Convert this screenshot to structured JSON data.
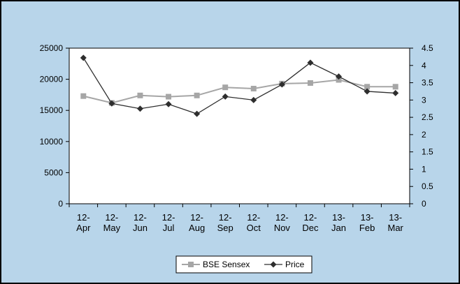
{
  "colors": {
    "chart_background": "#b8d5ea",
    "plot_background": "#ffffff",
    "border": "#000000",
    "sensex_series": "#a6a6a6",
    "price_series": "#2e2e2e"
  },
  "chart_data": {
    "type": "line",
    "categories": [
      "12-\nApr",
      "12-\nMay",
      "12-\nJun",
      "12-\nJul",
      "12-\nAug",
      "12-\nSep",
      "12-\nOct",
      "12-\nNov",
      "12-\nDec",
      "13-\nJan",
      "13-\nFeb",
      "13-\nMar"
    ],
    "y_left": {
      "range": [
        0,
        25000
      ],
      "ticks": [
        0,
        5000,
        10000,
        15000,
        20000,
        25000
      ],
      "tick_labels": [
        "0",
        "5000",
        "10000",
        "15000",
        "20000",
        "25000"
      ]
    },
    "y_right": {
      "range": [
        0,
        4.5
      ],
      "ticks": [
        0,
        0.5,
        1,
        1.5,
        2,
        2.5,
        3,
        3.5,
        4,
        4.5
      ],
      "tick_labels": [
        "0",
        "0.5",
        "1",
        "1.5",
        "2",
        "2.5",
        "3",
        "3.5",
        "4",
        "4.5"
      ]
    },
    "series": [
      {
        "name": "BSE Sensex",
        "axis": "left",
        "marker": "square",
        "values": [
          17300,
          16200,
          17400,
          17200,
          17400,
          18700,
          18500,
          19300,
          19400,
          19900,
          18800,
          18800
        ]
      },
      {
        "name": "Price",
        "axis": "right",
        "marker": "diamond",
        "values": [
          4.22,
          2.9,
          2.75,
          2.88,
          2.6,
          3.1,
          3.0,
          3.45,
          4.08,
          3.68,
          3.25,
          3.2
        ]
      }
    ],
    "legend": "bottom-center",
    "grid": false
  }
}
